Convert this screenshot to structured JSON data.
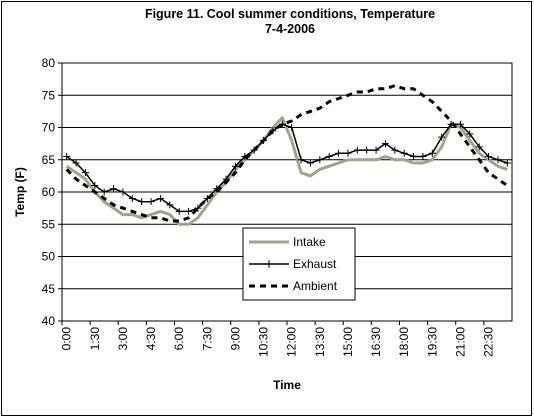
{
  "chart_data": {
    "type": "line",
    "title": [
      "Figure 11. Cool summer conditions, Temperature",
      "7-4-2006"
    ],
    "x_label": "Time",
    "y_label": "Temp (F)",
    "categories": [
      "0:00",
      null,
      null,
      "1:30",
      null,
      null,
      "3:00",
      null,
      null,
      "4:30",
      null,
      null,
      "6:00",
      null,
      null,
      "7:30",
      null,
      null,
      "9:00",
      null,
      null,
      "10:30",
      null,
      null,
      "12:00",
      null,
      null,
      "13:30",
      null,
      null,
      "15:00",
      null,
      null,
      "16:30",
      null,
      null,
      "18:00",
      null,
      null,
      "19:30",
      null,
      null,
      "21:00",
      null,
      null,
      "22:30",
      null,
      null
    ],
    "series": [
      {
        "name": "Intake",
        "color": "#a3a38c",
        "style": "solid",
        "marker": false,
        "values": [
          64,
          63,
          62,
          60,
          58.5,
          57.5,
          56.5,
          56.5,
          56,
          56.5,
          57,
          56.5,
          55,
          55,
          56,
          58,
          60,
          61.5,
          63.5,
          65,
          66.5,
          68,
          70,
          71.5,
          68,
          63,
          62.5,
          63.5,
          64,
          64.5,
          65,
          65,
          65,
          65,
          65.5,
          65,
          65,
          64.5,
          64.5,
          65,
          67,
          70.5,
          70,
          68,
          66,
          65,
          64,
          63.5
        ]
      },
      {
        "name": "Exhaust",
        "color": "#000000",
        "style": "solid",
        "marker": true,
        "values": [
          65.5,
          64.5,
          63,
          61,
          60,
          60.5,
          60,
          59,
          58.5,
          58.5,
          59,
          58,
          57,
          57,
          57.5,
          59,
          60.5,
          62,
          64,
          65.5,
          66.5,
          68,
          69.5,
          70.5,
          70,
          65,
          64.5,
          65,
          65.5,
          66,
          66,
          66.5,
          66.5,
          66.5,
          67.5,
          66.5,
          66,
          65.5,
          65.5,
          66,
          68.5,
          70.5,
          70.5,
          69,
          67,
          65.5,
          65,
          64.5
        ]
      },
      {
        "name": "Ambient",
        "color": "#000000",
        "style": "dashed",
        "marker": false,
        "values": [
          63.5,
          62,
          61,
          60,
          59,
          58,
          57.5,
          57,
          56.5,
          56,
          56,
          55.5,
          55.5,
          56,
          57.5,
          59,
          60,
          61.5,
          63,
          65,
          66.5,
          68,
          69.5,
          70.5,
          71,
          72,
          72.5,
          73,
          74,
          74.5,
          75,
          75.5,
          75.5,
          76,
          76,
          76.5,
          76,
          76,
          75,
          74,
          72.5,
          71,
          69,
          67,
          65,
          63,
          62,
          61
        ]
      }
    ],
    "ylim": [
      40,
      80
    ],
    "yticks": [
      40,
      45,
      50,
      55,
      60,
      65,
      70,
      75,
      80
    ],
    "grid": true,
    "legend": "center"
  }
}
